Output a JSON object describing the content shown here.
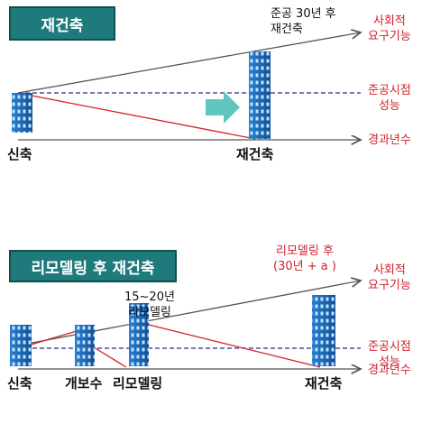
{
  "panel1": {
    "title": "재건축",
    "annotation_top": [
      "준공 30년 후",
      "재건축"
    ],
    "right_labels": {
      "social": [
        "사회적",
        "요구기능"
      ],
      "completion": [
        "준공시점",
        "성능"
      ],
      "time": "경과년수"
    },
    "bottom_labels": {
      "new": "신축",
      "rebuild": "재건축"
    }
  },
  "panel2": {
    "title": "리모델링 후 재건축",
    "annotation_red": [
      "리모델링 후",
      "(30년 + a )"
    ],
    "annotation_mid": [
      "15~20년",
      "리모델링"
    ],
    "right_labels": {
      "social": [
        "사회적",
        "요구기능"
      ],
      "completion": [
        "준공시점",
        "성능"
      ],
      "time": "경과년수"
    },
    "bottom_labels": {
      "new": "신축",
      "repair": "개보수",
      "remodel": "리모델링",
      "rebuild": "재건축"
    }
  },
  "colors": {
    "title_bg": "#1f7b7b",
    "axis_line": "#555555",
    "performance_line": "#d21f2a",
    "dashed_line": "#2a2f8f",
    "arrow_accent": "#5fc7c0",
    "building": "#1c68b8"
  }
}
